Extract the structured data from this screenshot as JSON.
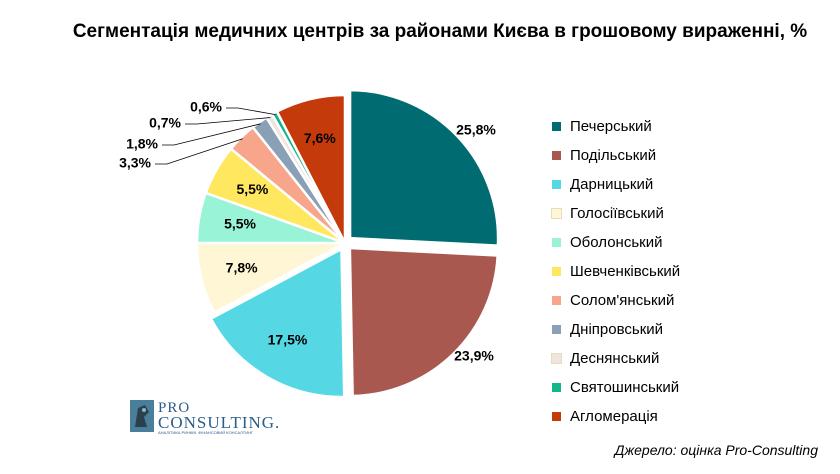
{
  "chart_data": {
    "type": "pie",
    "title": "Сегментація медичних центрів за районами Києва в грошовому вираженні, %",
    "categories": [
      "Печерський",
      "Подільський",
      "Дарницький",
      "Голосіївський",
      "Оболонський",
      "Шевченківський",
      "Солом'янський",
      "Дніпровський",
      "Деснянський",
      "Святошинський",
      "Агломерація"
    ],
    "values": [
      25.8,
      23.9,
      17.5,
      7.8,
      5.5,
      5.5,
      3.3,
      1.8,
      0.7,
      0.6,
      7.6
    ],
    "labels": [
      "25,8%",
      "23,9%",
      "17,5%",
      "7,8%",
      "5,5%",
      "5,5%",
      "3,3%",
      "1,8%",
      "0,7%",
      "0,6%",
      "7,6%"
    ],
    "colors": [
      "#006b70",
      "#a95850",
      "#55d8e4",
      "#fff6d6",
      "#99f3d6",
      "#ffe860",
      "#f7a58b",
      "#8aa0b6",
      "#efe4df",
      "#13b58b",
      "#c43a0b"
    ],
    "exploded": [
      true,
      true,
      true,
      false,
      false,
      false,
      false,
      false,
      false,
      false,
      false
    ],
    "legend_position": "right"
  },
  "logo": {
    "line1": "PRO",
    "line2": "CONSULTING.",
    "tagline": "АНАЛІТИКА РИНКІВ. ФІНАНСОВИЙ КОНСАЛТИНГ"
  },
  "source": "Джерело: оцінка Pro-Consulting"
}
